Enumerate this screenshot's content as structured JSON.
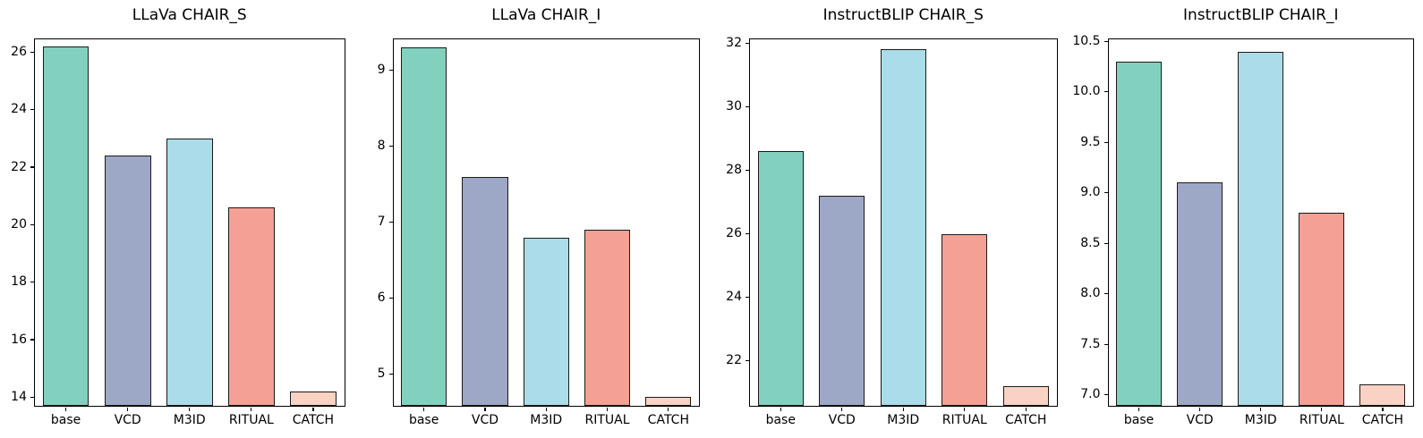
{
  "figure": {
    "background_color": "#ffffff",
    "axis_color": "#000000",
    "text_color": "#000000"
  },
  "style": {
    "bar_colors": [
      "#82D1BE",
      "#9DA8C6",
      "#AADCE9",
      "#F4A094",
      "#F9D2C4"
    ],
    "bar_edge_color": "#1a1a1a"
  },
  "chart_data": [
    {
      "type": "bar",
      "title": "LLaVa CHAIR_S",
      "categories": [
        "base",
        "VCD",
        "M3ID",
        "RITUAL",
        "CATCH"
      ],
      "values": [
        26.2,
        22.4,
        23.0,
        20.6,
        14.2
      ],
      "xlabel": "",
      "ylabel": "",
      "ylim": [
        13.7,
        26.45
      ],
      "ytick_values": [
        14,
        16,
        18,
        20,
        22,
        24,
        26
      ],
      "ytick_labels": [
        "14",
        "16",
        "18",
        "20",
        "22",
        "24",
        "26"
      ],
      "grid": false,
      "legend": "none"
    },
    {
      "type": "bar",
      "title": "LLaVa CHAIR_I",
      "categories": [
        "base",
        "VCD",
        "M3ID",
        "RITUAL",
        "CATCH"
      ],
      "values": [
        9.3,
        7.6,
        6.8,
        6.9,
        4.7
      ],
      "xlabel": "",
      "ylabel": "",
      "ylim": [
        4.58,
        9.41
      ],
      "ytick_values": [
        5,
        6,
        7,
        8,
        9
      ],
      "ytick_labels": [
        "5",
        "6",
        "7",
        "8",
        "9"
      ],
      "grid": false,
      "legend": "none"
    },
    {
      "type": "bar",
      "title": "InstructBLIP CHAIR_S",
      "categories": [
        "base",
        "VCD",
        "M3ID",
        "RITUAL",
        "CATCH"
      ],
      "values": [
        28.6,
        27.2,
        31.8,
        26.0,
        21.2
      ],
      "xlabel": "",
      "ylabel": "",
      "ylim": [
        20.59,
        32.12
      ],
      "ytick_values": [
        22,
        24,
        26,
        28,
        30,
        32
      ],
      "ytick_labels": [
        "22",
        "24",
        "26",
        "28",
        "30",
        "32"
      ],
      "grid": false,
      "legend": "none"
    },
    {
      "type": "bar",
      "title": "InstructBLIP CHAIR_I",
      "categories": [
        "base",
        "VCD",
        "M3ID",
        "RITUAL",
        "CATCH"
      ],
      "values": [
        10.3,
        9.1,
        10.4,
        8.8,
        7.1
      ],
      "xlabel": "",
      "ylabel": "",
      "ylim": [
        6.89,
        10.52
      ],
      "ytick_values": [
        7.0,
        7.5,
        8.0,
        8.5,
        9.0,
        9.5,
        10.0,
        10.5
      ],
      "ytick_labels": [
        "7.0",
        "7.5",
        "8.0",
        "8.5",
        "9.0",
        "9.5",
        "10.0",
        "10.5"
      ],
      "grid": false,
      "legend": "none"
    }
  ]
}
